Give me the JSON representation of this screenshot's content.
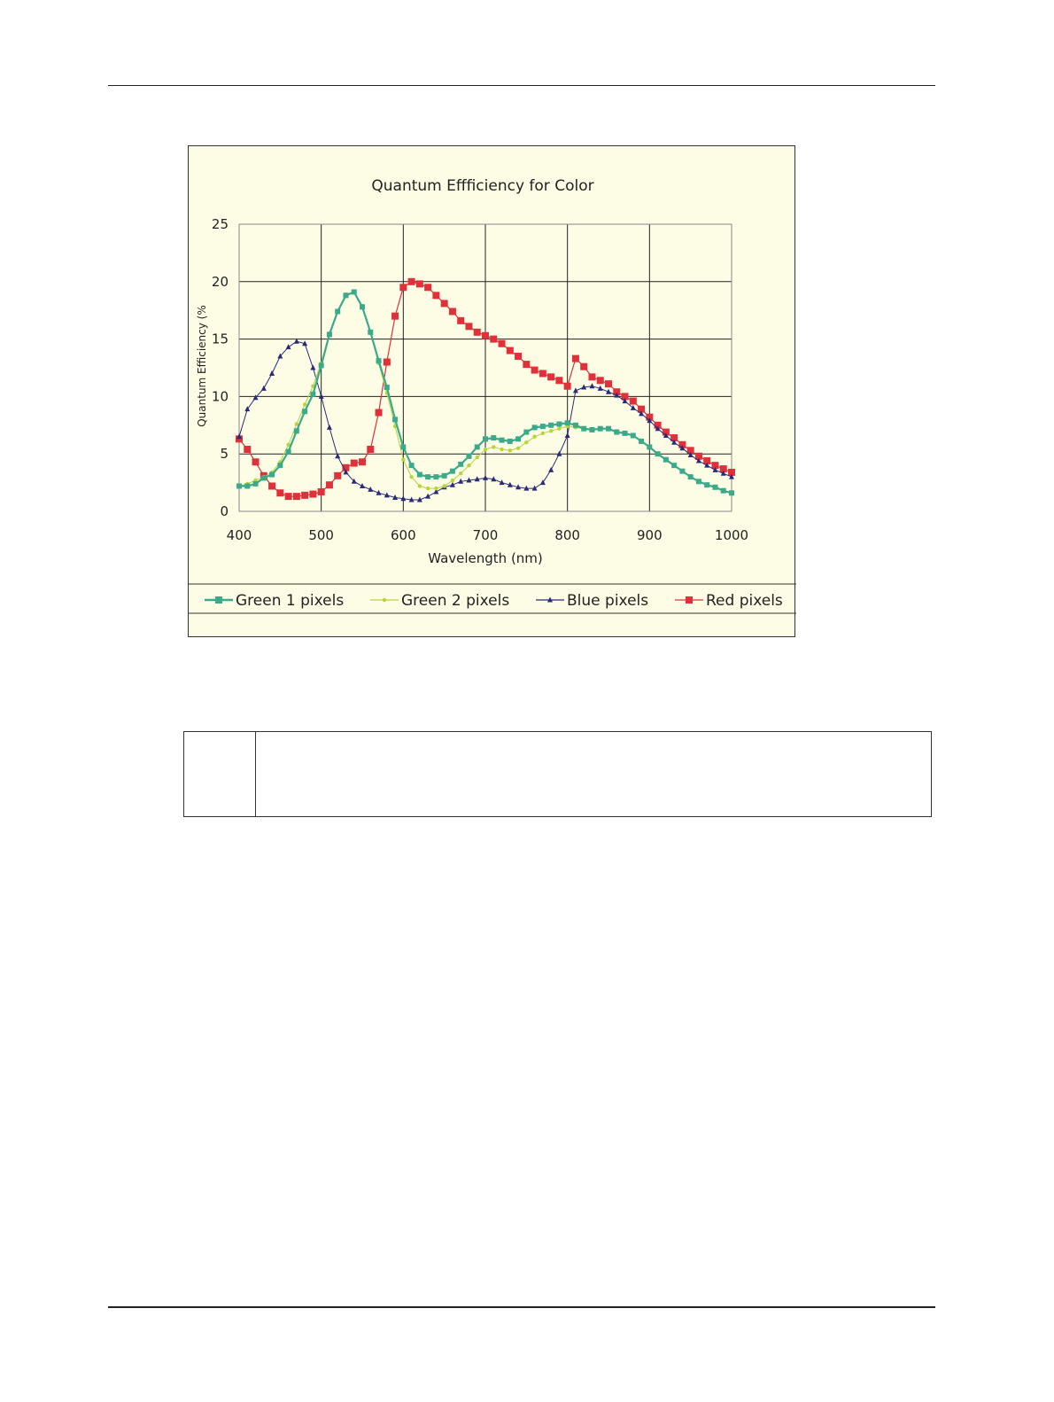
{
  "colors": {
    "green1": "#3aaa8a",
    "green2": "#b7d43a",
    "blue": "#2a2a7a",
    "red": "#e0303a",
    "plot_bg": "#fdfde6"
  },
  "chart_data": {
    "type": "line",
    "title": "Quantum Effficiency  for Color",
    "xlabel": "Wavelength (nm)",
    "ylabel": "Quantum Efficiency (%",
    "xlim": [
      400,
      1000
    ],
    "ylim": [
      0,
      25
    ],
    "xticks": [
      "400",
      "500",
      "600",
      "700",
      "800",
      "900",
      "1000"
    ],
    "yticks": [
      "0",
      "5",
      "10",
      "15",
      "20",
      "25"
    ],
    "grid": true,
    "legend_position": "bottom",
    "series": [
      {
        "name": "Green 1 pixels",
        "color": "#3aaa8a",
        "marker": "square",
        "x": [
          400,
          410,
          420,
          430,
          440,
          450,
          460,
          470,
          480,
          490,
          500,
          510,
          520,
          530,
          540,
          550,
          560,
          570,
          580,
          590,
          600,
          610,
          620,
          630,
          640,
          650,
          660,
          670,
          680,
          690,
          700,
          710,
          720,
          730,
          740,
          750,
          760,
          770,
          780,
          790,
          800,
          810,
          820,
          830,
          840,
          850,
          860,
          870,
          880,
          890,
          900,
          910,
          920,
          930,
          940,
          950,
          960,
          970,
          980,
          990,
          1000
        ],
        "y": [
          2.2,
          2.2,
          2.4,
          2.9,
          3.2,
          4,
          5.2,
          7,
          8.7,
          10.2,
          12.7,
          15.4,
          17.4,
          18.8,
          19.1,
          17.8,
          15.6,
          13.1,
          10.8,
          8,
          5.6,
          4,
          3.2,
          3,
          3,
          3.1,
          3.5,
          4.1,
          4.8,
          5.6,
          6.3,
          6.4,
          6.2,
          6.1,
          6.3,
          6.9,
          7.3,
          7.4,
          7.5,
          7.6,
          7.7,
          7.5,
          7.2,
          7.1,
          7.2,
          7.2,
          6.9,
          6.8,
          6.6,
          6.1,
          5.6,
          5,
          4.5,
          4,
          3.5,
          3,
          2.6,
          2.3,
          2.1,
          1.8,
          1.6
        ]
      },
      {
        "name": "Green 2 pixels",
        "color": "#b7d43a",
        "marker": "dot",
        "x": [
          400,
          410,
          420,
          430,
          440,
          450,
          460,
          470,
          480,
          490,
          500,
          510,
          520,
          530,
          540,
          550,
          560,
          570,
          580,
          590,
          600,
          610,
          620,
          630,
          640,
          650,
          660,
          670,
          680,
          690,
          700,
          710,
          720,
          730,
          740,
          750,
          760,
          770,
          780,
          790,
          800,
          810,
          820,
          830,
          840,
          850,
          860,
          870,
          880,
          890,
          900,
          910,
          920,
          930,
          940,
          950,
          960,
          970,
          980,
          990,
          1000
        ],
        "y": [
          2.2,
          2.4,
          2.7,
          3,
          3.4,
          4.3,
          5.8,
          7.6,
          9.3,
          10.9,
          12.9,
          15.5,
          17.4,
          18.9,
          19.1,
          17.9,
          15.5,
          12.9,
          10.3,
          7.4,
          4.5,
          3,
          2.2,
          2,
          2,
          2.2,
          2.7,
          3.3,
          4,
          4.7,
          5.4,
          5.6,
          5.4,
          5.3,
          5.5,
          6,
          6.5,
          6.8,
          7,
          7.2,
          7.4,
          7.3,
          7.2,
          7.1,
          7.2,
          7.2,
          7,
          6.8,
          6.6,
          6.1,
          5.6,
          5,
          4.5,
          4,
          3.5,
          3,
          2.6,
          2.3,
          2.1,
          1.8,
          1.6
        ]
      },
      {
        "name": "Blue pixels",
        "color": "#2a2a7a",
        "marker": "triangle",
        "x": [
          400,
          410,
          420,
          430,
          440,
          450,
          460,
          470,
          480,
          490,
          500,
          510,
          520,
          530,
          540,
          550,
          560,
          570,
          580,
          590,
          600,
          610,
          620,
          630,
          640,
          650,
          660,
          670,
          680,
          690,
          700,
          710,
          720,
          730,
          740,
          750,
          760,
          770,
          780,
          790,
          800,
          810,
          820,
          830,
          840,
          850,
          860,
          870,
          880,
          890,
          900,
          910,
          920,
          930,
          940,
          950,
          960,
          970,
          980,
          990,
          1000
        ],
        "y": [
          6.5,
          8.9,
          9.9,
          10.7,
          12,
          13.5,
          14.3,
          14.8,
          14.6,
          12.5,
          10,
          7.3,
          4.8,
          3.4,
          2.6,
          2.2,
          1.9,
          1.6,
          1.4,
          1.2,
          1.1,
          1,
          1,
          1.3,
          1.7,
          2.1,
          2.3,
          2.6,
          2.7,
          2.8,
          2.9,
          2.8,
          2.5,
          2.3,
          2.1,
          2,
          2,
          2.5,
          3.6,
          5,
          6.6,
          10.5,
          10.8,
          10.9,
          10.7,
          10.4,
          10.1,
          9.6,
          9,
          8.5,
          7.9,
          7.2,
          6.6,
          6,
          5.5,
          4.9,
          4.4,
          4,
          3.6,
          3.3,
          3
        ]
      },
      {
        "name": "Red pixels",
        "color": "#e0303a",
        "marker": "square",
        "x": [
          400,
          410,
          420,
          430,
          440,
          450,
          460,
          470,
          480,
          490,
          500,
          510,
          520,
          530,
          540,
          550,
          560,
          570,
          580,
          590,
          600,
          610,
          620,
          630,
          640,
          650,
          660,
          670,
          680,
          690,
          700,
          710,
          720,
          730,
          740,
          750,
          760,
          770,
          780,
          790,
          800,
          810,
          820,
          830,
          840,
          850,
          860,
          870,
          880,
          890,
          900,
          910,
          920,
          930,
          940,
          950,
          960,
          970,
          980,
          990,
          1000
        ],
        "y": [
          6.3,
          5.4,
          4.3,
          3.1,
          2.2,
          1.6,
          1.3,
          1.3,
          1.4,
          1.5,
          1.7,
          2.3,
          3.1,
          3.8,
          4.2,
          4.3,
          5.4,
          8.6,
          13,
          17,
          19.5,
          20,
          19.8,
          19.5,
          18.8,
          18.1,
          17.4,
          16.6,
          16.1,
          15.6,
          15.3,
          15,
          14.6,
          14,
          13.5,
          12.8,
          12.3,
          12,
          11.7,
          11.4,
          10.9,
          13.3,
          12.6,
          11.7,
          11.4,
          11.1,
          10.4,
          10,
          9.6,
          8.9,
          8.2,
          7.5,
          6.9,
          6.4,
          5.8,
          5.3,
          4.8,
          4.4,
          4,
          3.7,
          3.4
        ]
      }
    ]
  },
  "note": {}
}
